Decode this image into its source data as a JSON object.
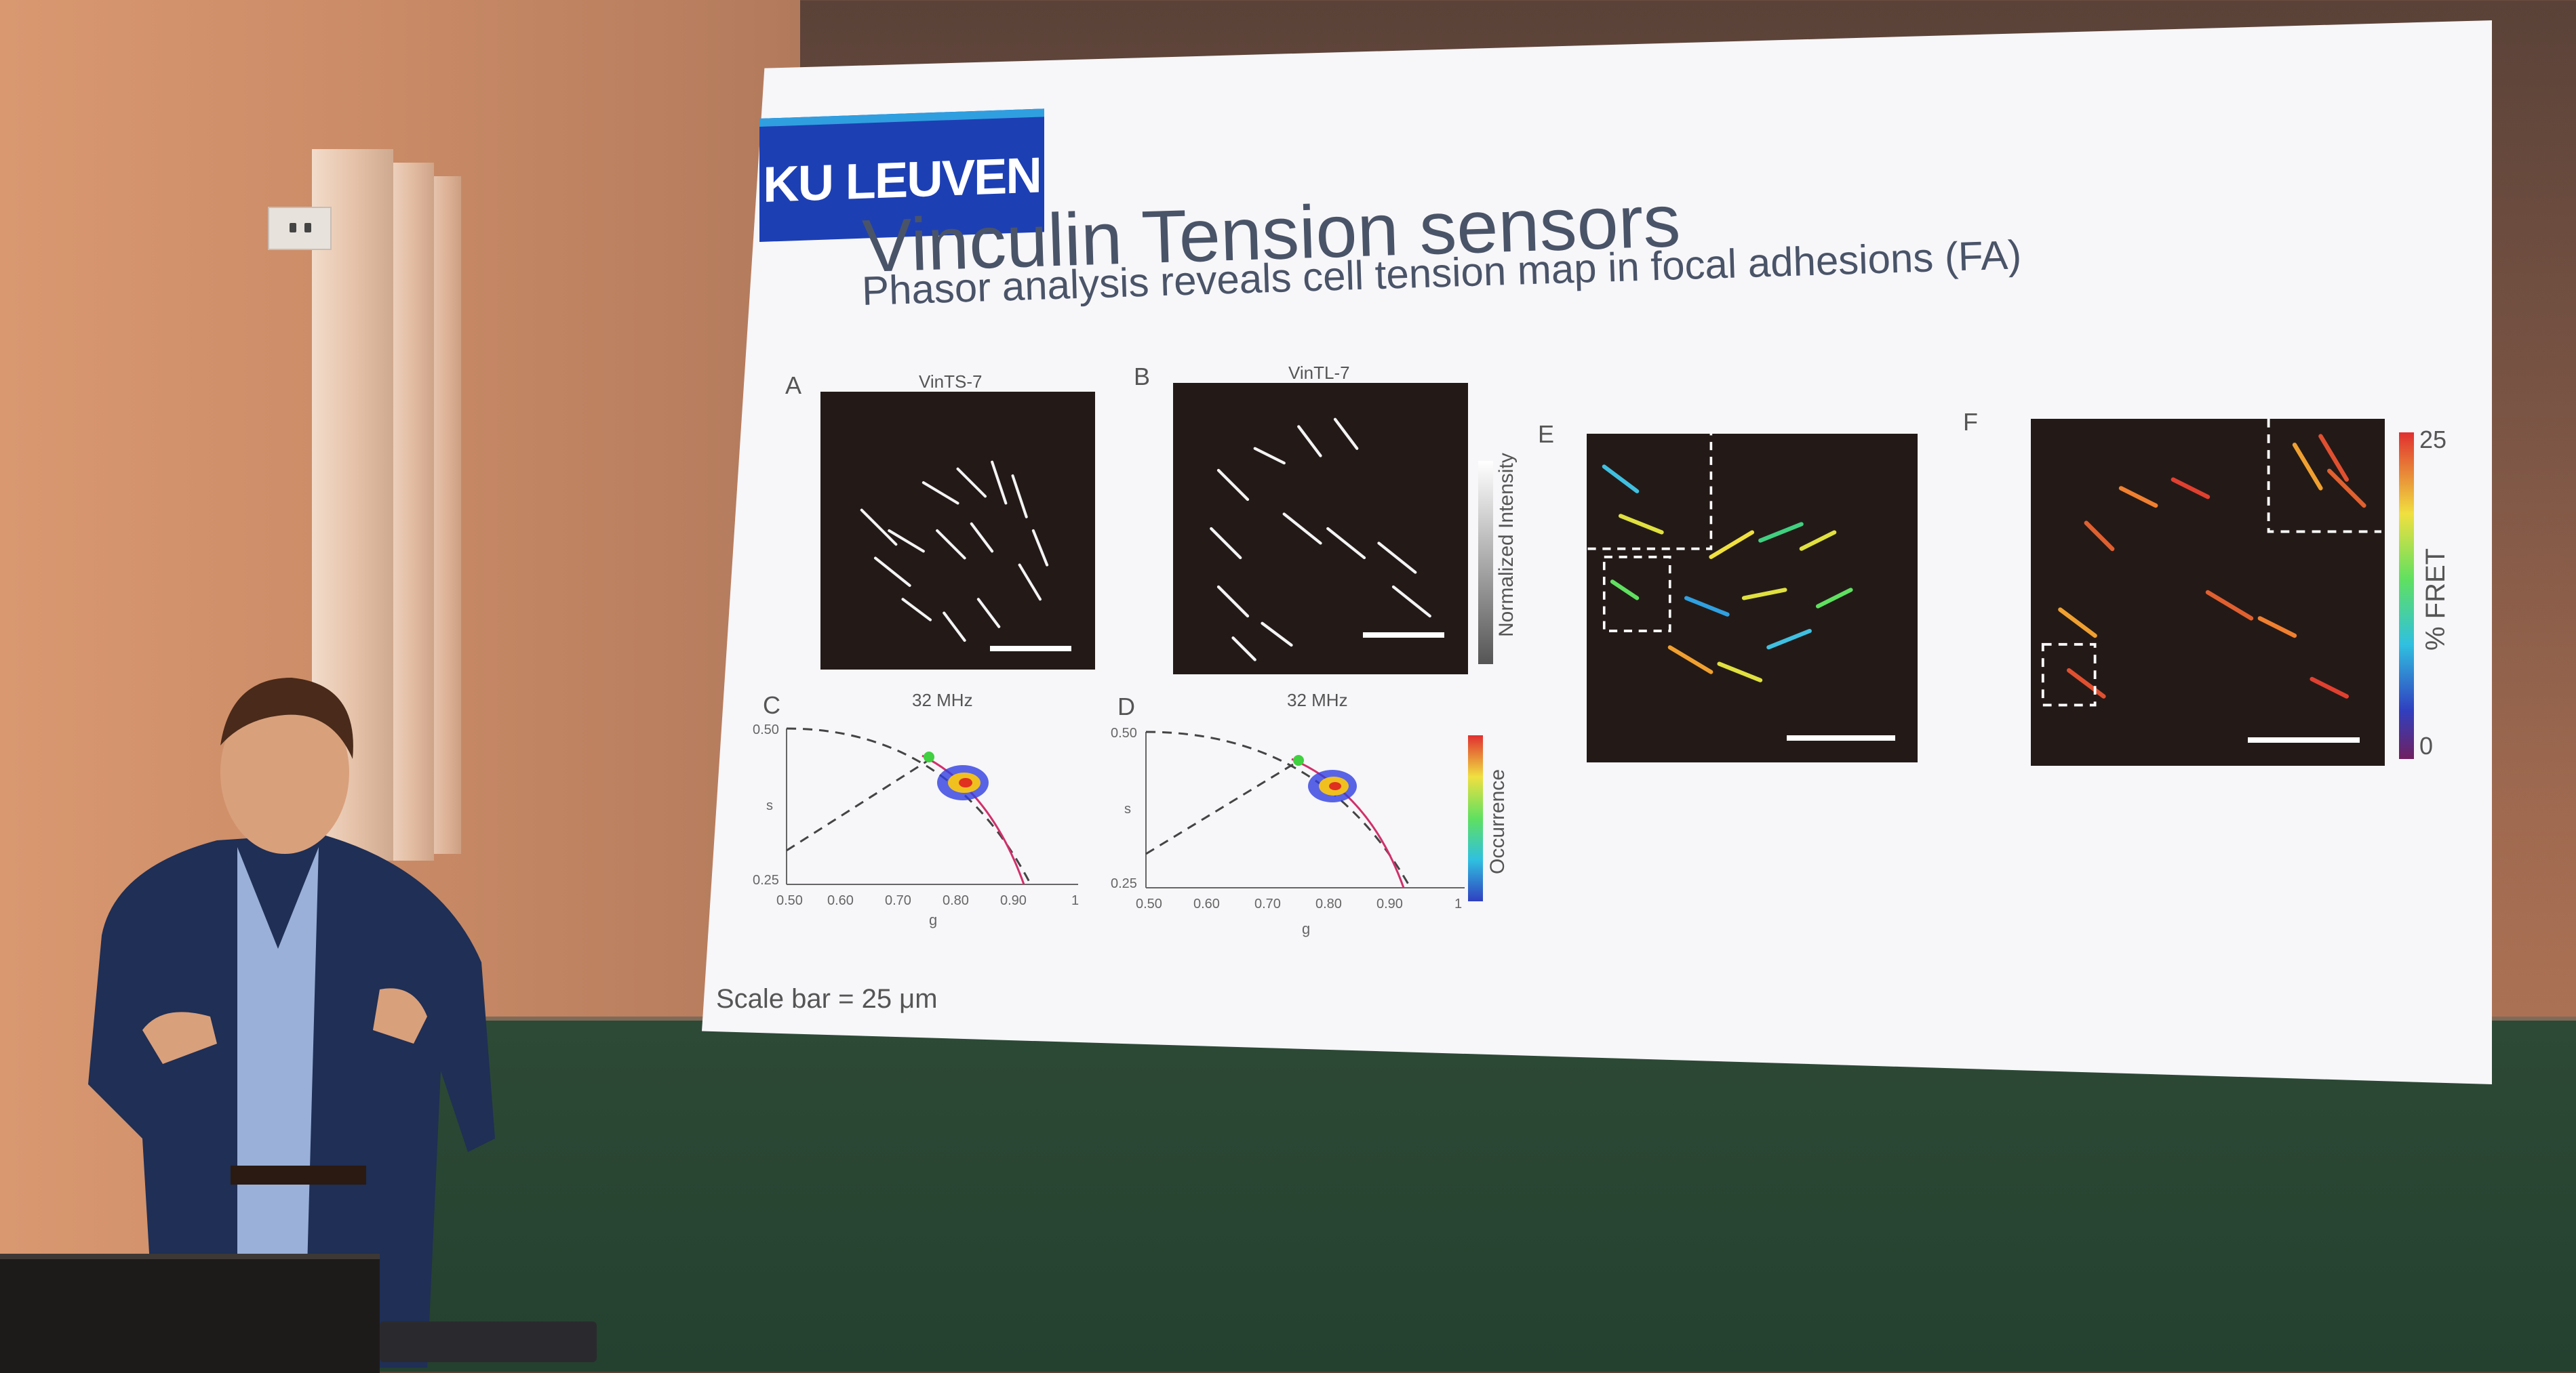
{
  "slide": {
    "logo_text": "KU LEUVEN",
    "title": "Vinculin Tension sensors",
    "subtitle": "Phasor analysis reveals cell tension map in focal adhesions (FA)",
    "footnote": "Scale bar = 25 μm",
    "panels": {
      "a": {
        "letter": "A",
        "caption": "VinTS-7"
      },
      "b": {
        "letter": "B",
        "caption": "VinTL-7"
      },
      "c": {
        "letter": "C",
        "caption": "32 MHz"
      },
      "d": {
        "letter": "D",
        "caption": "32 MHz"
      },
      "e": {
        "letter": "E"
      },
      "f": {
        "letter": "F"
      }
    },
    "intensity_bar_label": "Normalized Intensity",
    "occurrence_bar_label": "Occurrence",
    "fret_bar": {
      "label": "% FRET",
      "max": "25",
      "min": "0"
    },
    "phasor_axes": {
      "x_label": "g",
      "y_label": "s",
      "x_ticks": [
        "0.50",
        "0.60",
        "0.70",
        "0.80",
        "0.90",
        "1"
      ],
      "y_ticks": [
        "0.50",
        "0.25"
      ]
    }
  },
  "colors": {
    "logo_blue": "#1d3fb4",
    "logo_accent": "#2f9fe0",
    "slide_text": "#4a5468",
    "chalkboard": "#24402f",
    "panel_bg": "#231a18"
  }
}
